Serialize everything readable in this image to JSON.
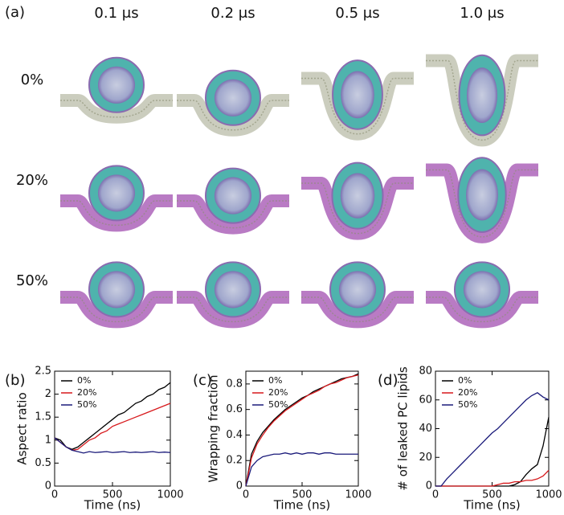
{
  "panel_a": {
    "label": "(a)",
    "columns": [
      "0.1 μs",
      "0.2 μs",
      "0.5 μs",
      "1.0 μs"
    ],
    "rows": [
      "0%",
      "20%",
      "50%"
    ]
  },
  "chart_data": [
    {
      "type": "line",
      "panel": "(b)",
      "x_label": "Time (ns)",
      "y_label": "Aspect ratio",
      "x": [
        0,
        50,
        100,
        150,
        200,
        250,
        300,
        350,
        400,
        450,
        500,
        550,
        600,
        650,
        700,
        750,
        800,
        850,
        900,
        950,
        1000
      ],
      "xlim": [
        0,
        1000
      ],
      "xticks": [
        0,
        500,
        1000
      ],
      "ylim": [
        0,
        2.5
      ],
      "yticks": [
        0,
        0.5,
        1,
        1.5,
        2,
        2.5
      ],
      "legend": "upper left",
      "series": [
        {
          "name": "0%",
          "color": "#000000",
          "values": [
            1.05,
            1.0,
            0.85,
            0.8,
            0.85,
            0.95,
            1.05,
            1.15,
            1.25,
            1.35,
            1.45,
            1.55,
            1.6,
            1.7,
            1.8,
            1.85,
            1.95,
            2.0,
            2.1,
            2.15,
            2.25
          ]
        },
        {
          "name": "20%",
          "color": "#d7191c",
          "values": [
            1.05,
            0.95,
            0.85,
            0.78,
            0.8,
            0.9,
            1.0,
            1.05,
            1.15,
            1.2,
            1.3,
            1.35,
            1.4,
            1.45,
            1.5,
            1.55,
            1.6,
            1.65,
            1.7,
            1.75,
            1.8
          ]
        },
        {
          "name": "50%",
          "color": "#1a1a7a",
          "values": [
            1.05,
            0.95,
            0.85,
            0.78,
            0.75,
            0.72,
            0.75,
            0.73,
            0.74,
            0.75,
            0.73,
            0.74,
            0.75,
            0.73,
            0.74,
            0.73,
            0.74,
            0.75,
            0.73,
            0.74,
            0.73
          ]
        }
      ]
    },
    {
      "type": "line",
      "panel": "(c)",
      "x_label": "Time (ns)",
      "y_label": "Wrapping fraction",
      "x": [
        0,
        50,
        100,
        150,
        200,
        250,
        300,
        350,
        400,
        450,
        500,
        550,
        600,
        650,
        700,
        750,
        800,
        850,
        900,
        950,
        1000
      ],
      "xlim": [
        0,
        1000
      ],
      "xticks": [
        0,
        500,
        1000
      ],
      "ylim": [
        0,
        0.9
      ],
      "yticks": [
        0,
        0.2,
        0.4,
        0.6,
        0.8
      ],
      "legend": "upper left",
      "series": [
        {
          "name": "0%",
          "color": "#000000",
          "values": [
            0,
            0.25,
            0.35,
            0.42,
            0.47,
            0.52,
            0.56,
            0.6,
            0.63,
            0.66,
            0.69,
            0.71,
            0.74,
            0.76,
            0.78,
            0.8,
            0.82,
            0.84,
            0.85,
            0.86,
            0.88
          ]
        },
        {
          "name": "20%",
          "color": "#d7191c",
          "values": [
            0,
            0.22,
            0.33,
            0.4,
            0.46,
            0.51,
            0.55,
            0.59,
            0.62,
            0.65,
            0.68,
            0.71,
            0.73,
            0.75,
            0.78,
            0.8,
            0.81,
            0.83,
            0.85,
            0.86,
            0.87
          ]
        },
        {
          "name": "50%",
          "color": "#1a1a7a",
          "values": [
            0,
            0.15,
            0.2,
            0.23,
            0.24,
            0.25,
            0.25,
            0.26,
            0.25,
            0.26,
            0.25,
            0.26,
            0.26,
            0.25,
            0.26,
            0.26,
            0.25,
            0.25,
            0.25,
            0.25,
            0.25
          ]
        }
      ]
    },
    {
      "type": "line",
      "panel": "(d)",
      "x_label": "Time (ns)",
      "y_label": "# of leaked PC lipids",
      "x": [
        0,
        50,
        100,
        150,
        200,
        250,
        300,
        350,
        400,
        450,
        500,
        550,
        600,
        650,
        700,
        750,
        800,
        850,
        900,
        950,
        1000
      ],
      "xlim": [
        0,
        1000
      ],
      "xticks": [
        0,
        500,
        1000
      ],
      "ylim": [
        0,
        80
      ],
      "yticks": [
        0,
        20,
        40,
        60,
        80
      ],
      "legend": "upper left",
      "series": [
        {
          "name": "0%",
          "color": "#000000",
          "values": [
            0,
            0,
            0,
            0,
            0,
            0,
            0,
            0,
            0,
            0,
            0,
            0,
            0,
            0,
            1,
            3,
            8,
            12,
            15,
            28,
            48
          ]
        },
        {
          "name": "20%",
          "color": "#d7191c",
          "values": [
            0,
            0,
            0,
            0,
            0,
            0,
            0,
            0,
            0,
            0,
            0,
            1,
            2,
            2,
            3,
            3,
            4,
            4,
            5,
            7,
            11
          ]
        },
        {
          "name": "50%",
          "color": "#1a1a7a",
          "values": [
            0,
            0,
            5,
            9,
            13,
            17,
            21,
            25,
            29,
            33,
            37,
            40,
            44,
            48,
            52,
            56,
            60,
            63,
            65,
            62,
            60
          ]
        }
      ]
    }
  ]
}
